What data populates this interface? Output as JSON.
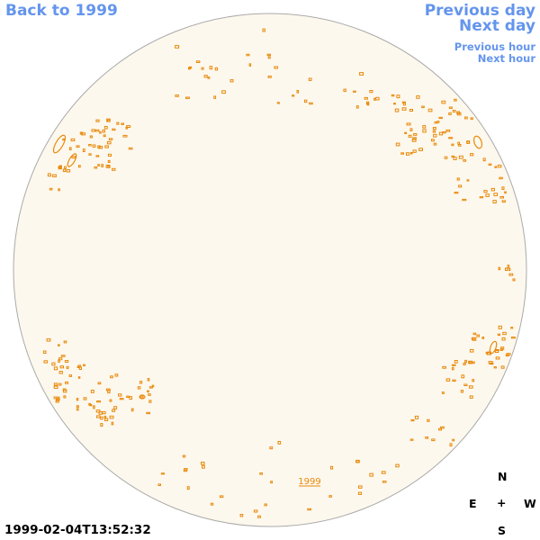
{
  "nav": {
    "back": "Back to 1999",
    "previous_day": "Previous day",
    "next_day": "Next day",
    "previous_hour": "Previous hour",
    "next_hour": "Next hour"
  },
  "timestamp": "1999-02-04T13:52:32",
  "region_label": "1999",
  "compass": {
    "north": "N",
    "east": "E",
    "center": "+",
    "west": "W",
    "south": "S"
  },
  "colors": {
    "link": "#6495ed",
    "disk_fill": "#fdf8ed",
    "disk_border": "#aaaaaa",
    "contour": "#e8890c"
  }
}
